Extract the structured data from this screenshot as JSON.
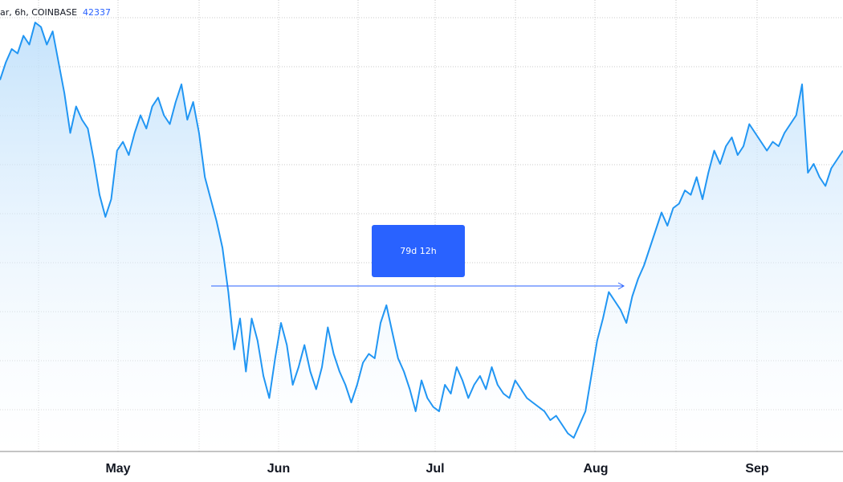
{
  "header": {
    "symbol_text": "ar, 6h, COINBASE",
    "last_price": "42337"
  },
  "measure": {
    "label": "79d 12h",
    "color": "#2962ff"
  },
  "colors": {
    "line": "#2196f3",
    "area_top": "#bbdefb",
    "area_bottom": "#ffffff",
    "grid": "#c8c8c8"
  },
  "chart_data": {
    "type": "area",
    "title": "",
    "xlabel": "",
    "ylabel": "",
    "grid": true,
    "x_ticks": [
      "May",
      "Jun",
      "Jul",
      "Aug",
      "Sep"
    ],
    "series": [
      {
        "values": [
          8.4,
          8.8,
          9.1,
          9.0,
          9.4,
          9.2,
          9.7,
          9.6,
          9.2,
          9.5,
          8.8,
          8.1,
          7.2,
          7.8,
          7.5,
          7.3,
          6.6,
          5.8,
          5.3,
          5.7,
          6.8,
          7.0,
          6.7,
          7.2,
          7.6,
          7.3,
          7.8,
          8.0,
          7.6,
          7.4,
          7.9,
          8.3,
          7.5,
          7.9,
          7.2,
          6.2,
          5.7,
          5.2,
          4.6,
          3.6,
          2.3,
          3.0,
          1.8,
          3.0,
          2.5,
          1.7,
          1.2,
          2.1,
          2.9,
          2.4,
          1.5,
          1.9,
          2.4,
          1.8,
          1.4,
          1.9,
          2.8,
          2.2,
          1.8,
          1.5,
          1.1,
          1.5,
          2.0,
          2.2,
          2.1,
          2.9,
          3.3,
          2.7,
          2.1,
          1.8,
          1.4,
          0.9,
          1.6,
          1.2,
          1.0,
          0.9,
          1.5,
          1.3,
          1.9,
          1.6,
          1.2,
          1.5,
          1.7,
          1.4,
          1.9,
          1.5,
          1.3,
          1.2,
          1.6,
          1.4,
          1.2,
          1.1,
          1.0,
          0.9,
          0.7,
          0.8,
          0.6,
          0.4,
          0.3,
          0.6,
          0.9,
          1.7,
          2.5,
          3.0,
          3.6,
          3.4,
          3.2,
          2.9,
          3.5,
          3.9,
          4.2,
          4.6,
          5.0,
          5.4,
          5.1,
          5.5,
          5.6,
          5.9,
          5.8,
          6.2,
          5.7,
          6.3,
          6.8,
          6.5,
          6.9,
          7.1,
          6.7,
          6.9,
          7.4,
          7.2,
          7.0,
          6.8,
          7.0,
          6.9,
          7.2,
          7.4,
          7.6,
          8.3,
          6.3,
          6.5,
          6.2,
          6.0,
          6.4,
          6.6,
          6.8
        ]
      }
    ]
  }
}
